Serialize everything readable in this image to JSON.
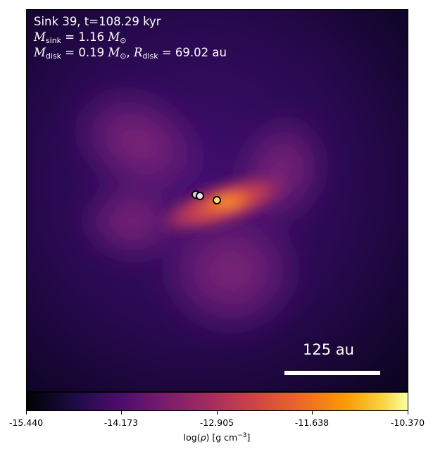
{
  "annotation": {
    "line1": "Sink 39, t=108.29 kyr",
    "msink_value": "1.16",
    "mdisk_value": "0.19",
    "rdisk_value": "69.02",
    "rdisk_unit": "au"
  },
  "scale_bar": {
    "label": "125 au"
  },
  "colorbar": {
    "colormap": "inferno",
    "ticks": [
      "-15.440",
      "-14.173",
      "-12.905",
      "-11.638",
      "-10.370"
    ],
    "label_prefix": "log(",
    "label_var": "ρ",
    "label_mid": ") [g cm",
    "label_exp": "−3",
    "label_end": "]"
  },
  "sinks": [
    {
      "color": "#e8c8e0"
    },
    {
      "color": "#f0e0f0"
    },
    {
      "color": "#ffe070"
    }
  ],
  "colors": {
    "background": "#1a0840",
    "envelope": "#6e1e78",
    "disk": "#e05a3a",
    "text": "#ffffff"
  }
}
